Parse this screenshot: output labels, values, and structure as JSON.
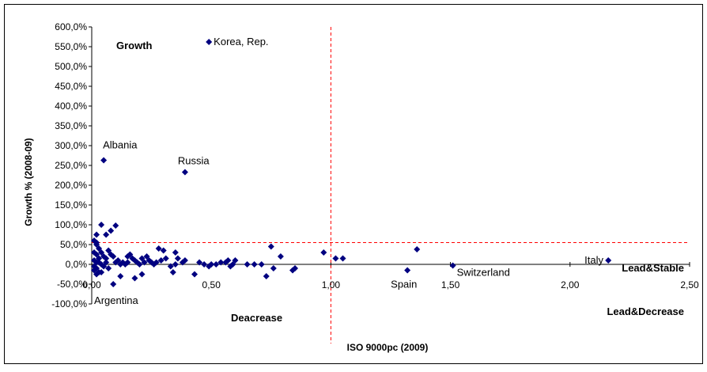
{
  "chart_data": {
    "type": "scatter",
    "xlabel": "ISO 9000pc (2009)",
    "ylabel": "Growth % (2008-09)",
    "xlim": [
      0,
      2.5
    ],
    "ylim": [
      -100,
      600
    ],
    "x_ticks": [
      0,
      0.5,
      1,
      1.5,
      2,
      2.5
    ],
    "x_tick_labels": [
      "0,00",
      "0,50",
      "1,00",
      "1,50",
      "2,00",
      "2,50"
    ],
    "y_ticks": [
      600,
      550,
      500,
      450,
      400,
      350,
      300,
      250,
      200,
      150,
      100,
      50,
      0,
      -50,
      -100
    ],
    "y_tick_labels": [
      "600,0%",
      "550,0%",
      "500,0%",
      "450,0%",
      "400,0%",
      "350,0%",
      "300,0%",
      "250,0%",
      "200,0%",
      "150,0%",
      "100,0%",
      "50,0%",
      "0,0%",
      "-50,0%",
      "-100,0%"
    ],
    "reference_lines": {
      "x": 1.0,
      "y": 55,
      "color": "#ff0000",
      "style": "dashed"
    },
    "marker_color": "#000080",
    "quadrant_labels": [
      "Growth",
      "Deacrease",
      "Lead&Stable",
      "Lead&Decrease"
    ],
    "annotations": [
      {
        "text": "Korea, Rep.",
        "x": 0.49,
        "y": 562
      },
      {
        "text": "Albania",
        "x": 0.05,
        "y": 263
      },
      {
        "text": "Russia",
        "x": 0.39,
        "y": 233
      },
      {
        "text": "Spain",
        "x": 1.32,
        "y": -15
      },
      {
        "text": "Switzerland",
        "x": 1.51,
        "y": -3
      },
      {
        "text": "Italy",
        "x": 2.16,
        "y": 10
      },
      {
        "text": "Argentina",
        "x": 0.02,
        "y": -30
      }
    ],
    "points": [
      [
        0.49,
        562
      ],
      [
        0.05,
        263
      ],
      [
        0.39,
        233
      ],
      [
        0.04,
        100
      ],
      [
        0.1,
        98
      ],
      [
        0.06,
        75
      ],
      [
        0.02,
        75
      ],
      [
        0.08,
        85
      ],
      [
        0.01,
        60
      ],
      [
        0.02,
        55
      ],
      [
        0.03,
        40
      ],
      [
        0.01,
        30
      ],
      [
        0.02,
        25
      ],
      [
        0.04,
        30
      ],
      [
        0.05,
        20
      ],
      [
        0.03,
        15
      ],
      [
        0.01,
        10
      ],
      [
        0.02,
        5
      ],
      [
        0.03,
        5
      ],
      [
        0.04,
        0
      ],
      [
        0.05,
        -5
      ],
      [
        0.02,
        -10
      ],
      [
        0.01,
        -15
      ],
      [
        0.03,
        -20
      ],
      [
        0.02,
        -25
      ],
      [
        0.06,
        15
      ],
      [
        0.07,
        35
      ],
      [
        0.08,
        25
      ],
      [
        0.09,
        20
      ],
      [
        0.1,
        5
      ],
      [
        0.11,
        10
      ],
      [
        0.12,
        0
      ],
      [
        0.13,
        5
      ],
      [
        0.14,
        0
      ],
      [
        0.15,
        5
      ],
      [
        0.16,
        25
      ],
      [
        0.17,
        15
      ],
      [
        0.18,
        10
      ],
      [
        0.19,
        5
      ],
      [
        0.2,
        0
      ],
      [
        0.21,
        15
      ],
      [
        0.22,
        5
      ],
      [
        0.23,
        20
      ],
      [
        0.24,
        10
      ],
      [
        0.25,
        5
      ],
      [
        0.26,
        0
      ],
      [
        0.28,
        40
      ],
      [
        0.29,
        10
      ],
      [
        0.3,
        35
      ],
      [
        0.31,
        15
      ],
      [
        0.33,
        -5
      ],
      [
        0.34,
        -20
      ],
      [
        0.35,
        30
      ],
      [
        0.36,
        15
      ],
      [
        0.38,
        5
      ],
      [
        0.39,
        10
      ],
      [
        0.43,
        -25
      ],
      [
        0.45,
        5
      ],
      [
        0.47,
        0
      ],
      [
        0.49,
        -5
      ],
      [
        0.5,
        0
      ],
      [
        0.52,
        0
      ],
      [
        0.54,
        5
      ],
      [
        0.56,
        5
      ],
      [
        0.57,
        10
      ],
      [
        0.58,
        -5
      ],
      [
        0.59,
        0
      ],
      [
        0.6,
        10
      ],
      [
        0.65,
        0
      ],
      [
        0.68,
        0
      ],
      [
        0.71,
        0
      ],
      [
        0.73,
        -30
      ],
      [
        0.75,
        45
      ],
      [
        0.76,
        -10
      ],
      [
        0.79,
        20
      ],
      [
        0.84,
        -15
      ],
      [
        0.85,
        -10
      ],
      [
        0.97,
        30
      ],
      [
        1.02,
        15
      ],
      [
        1.05,
        15
      ],
      [
        1.32,
        -15
      ],
      [
        1.36,
        38
      ],
      [
        1.51,
        -3
      ],
      [
        2.16,
        10
      ],
      [
        0.07,
        -10
      ],
      [
        0.12,
        -30
      ],
      [
        0.09,
        -50
      ],
      [
        0.18,
        -35
      ],
      [
        0.21,
        -25
      ],
      [
        0.01,
        -5
      ],
      [
        0.04,
        -20
      ],
      [
        0.06,
        5
      ],
      [
        0.02,
        50
      ],
      [
        0.15,
        20
      ],
      [
        0.27,
        5
      ],
      [
        0.35,
        0
      ]
    ]
  }
}
